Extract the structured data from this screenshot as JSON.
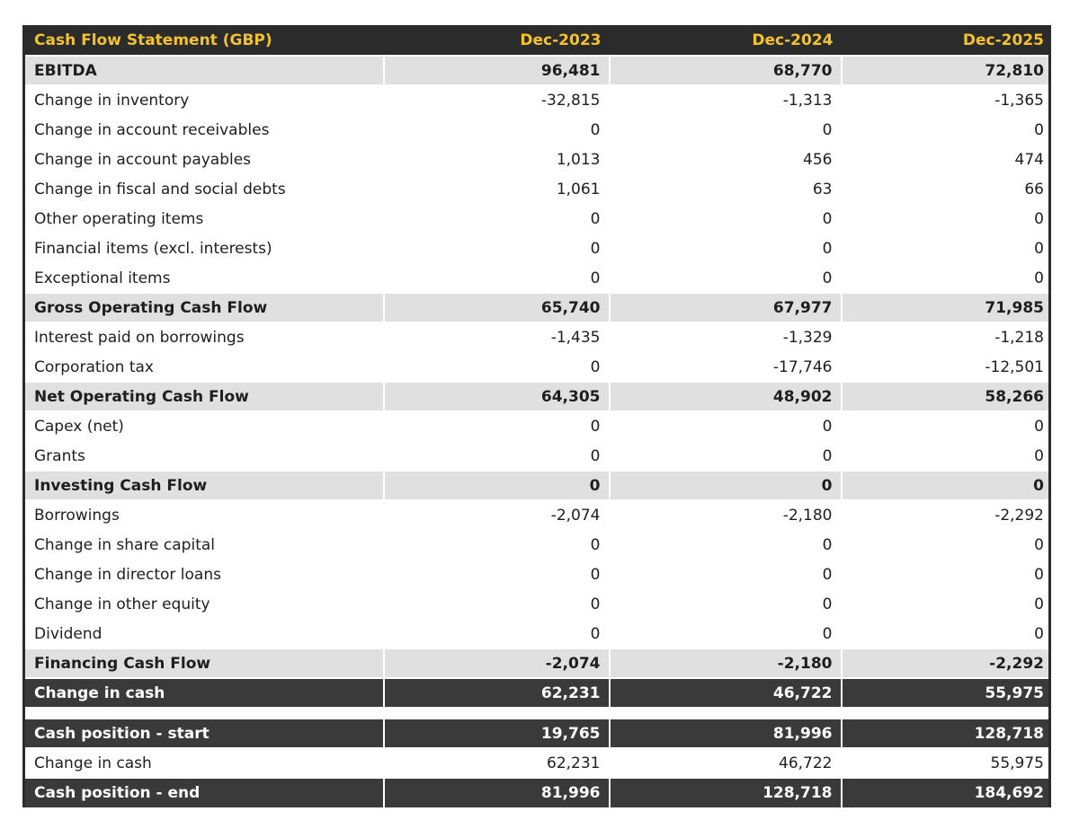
{
  "colors": {
    "header_bg": "#2b2b2b",
    "header_text": "#f2c230",
    "subtotal_bg": "#e0e0e0",
    "dark_row_bg": "#3a3a3a",
    "dark_row_text": "#ffffff",
    "body_text": "#1e1e1e"
  },
  "table": {
    "title": "Cash Flow Statement (GBP)",
    "columns": [
      "Dec-2023",
      "Dec-2024",
      "Dec-2025"
    ],
    "rows": [
      {
        "label": "EBITDA",
        "values": [
          "96,481",
          "68,770",
          "72,810"
        ],
        "style": "subtotal"
      },
      {
        "label": "Change in inventory",
        "values": [
          "-32,815",
          "-1,313",
          "-1,365"
        ],
        "style": "normal"
      },
      {
        "label": "Change in account receivables",
        "values": [
          "0",
          "0",
          "0"
        ],
        "style": "normal"
      },
      {
        "label": "Change in account payables",
        "values": [
          "1,013",
          "456",
          "474"
        ],
        "style": "normal"
      },
      {
        "label": "Change in fiscal and social debts",
        "values": [
          "1,061",
          "63",
          "66"
        ],
        "style": "normal"
      },
      {
        "label": "Other operating items",
        "values": [
          "0",
          "0",
          "0"
        ],
        "style": "normal"
      },
      {
        "label": "Financial items (excl. interests)",
        "values": [
          "0",
          "0",
          "0"
        ],
        "style": "normal"
      },
      {
        "label": "Exceptional items",
        "values": [
          "0",
          "0",
          "0"
        ],
        "style": "normal"
      },
      {
        "label": "Gross Operating Cash Flow",
        "values": [
          "65,740",
          "67,977",
          "71,985"
        ],
        "style": "subtotal"
      },
      {
        "label": "Interest paid on borrowings",
        "values": [
          "-1,435",
          "-1,329",
          "-1,218"
        ],
        "style": "normal"
      },
      {
        "label": "Corporation tax",
        "values": [
          "0",
          "-17,746",
          "-12,501"
        ],
        "style": "normal"
      },
      {
        "label": "Net Operating Cash Flow",
        "values": [
          "64,305",
          "48,902",
          "58,266"
        ],
        "style": "subtotal"
      },
      {
        "label": "Capex (net)",
        "values": [
          "0",
          "0",
          "0"
        ],
        "style": "normal"
      },
      {
        "label": "Grants",
        "values": [
          "0",
          "0",
          "0"
        ],
        "style": "normal"
      },
      {
        "label": "Investing Cash Flow",
        "values": [
          "0",
          "0",
          "0"
        ],
        "style": "subtotal"
      },
      {
        "label": "Borrowings",
        "values": [
          "-2,074",
          "-2,180",
          "-2,292"
        ],
        "style": "normal"
      },
      {
        "label": "Change in share capital",
        "values": [
          "0",
          "0",
          "0"
        ],
        "style": "normal"
      },
      {
        "label": "Change in director loans",
        "values": [
          "0",
          "0",
          "0"
        ],
        "style": "normal"
      },
      {
        "label": "Change in other equity",
        "values": [
          "0",
          "0",
          "0"
        ],
        "style": "normal"
      },
      {
        "label": "Dividend",
        "values": [
          "0",
          "0",
          "0"
        ],
        "style": "normal"
      },
      {
        "label": "Financing Cash Flow",
        "values": [
          "-2,074",
          "-2,180",
          "-2,292"
        ],
        "style": "subtotal"
      },
      {
        "label": "Change in cash",
        "values": [
          "62,231",
          "46,722",
          "55,975"
        ],
        "style": "dark"
      },
      {
        "label": "",
        "values": [
          "",
          "",
          ""
        ],
        "style": "spacer"
      },
      {
        "label": "Cash position - start",
        "values": [
          "19,765",
          "81,996",
          "128,718"
        ],
        "style": "dark"
      },
      {
        "label": "Change in cash",
        "values": [
          "62,231",
          "46,722",
          "55,975"
        ],
        "style": "normal"
      },
      {
        "label": "Cash position - end",
        "values": [
          "81,996",
          "128,718",
          "184,692"
        ],
        "style": "dark"
      }
    ]
  }
}
